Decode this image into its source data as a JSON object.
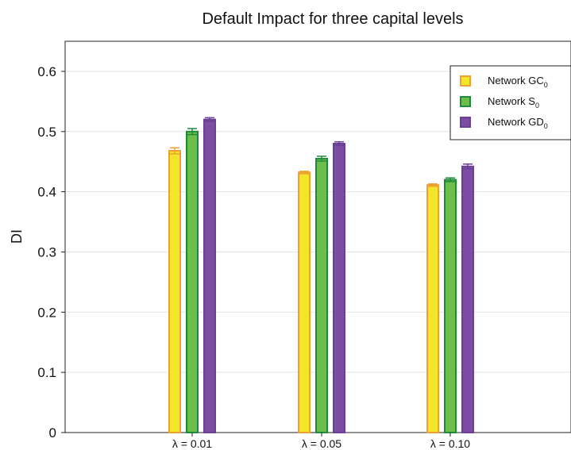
{
  "chart_data": {
    "type": "bar",
    "title": "Default Impact for three capital levels",
    "xlabel": "",
    "ylabel": "DI",
    "ylim": [
      0,
      0.65
    ],
    "yticks": [
      "0",
      "0.1",
      "0.2",
      "0.3",
      "0.4",
      "0.5",
      "0.6"
    ],
    "grid": true,
    "legend_position": "top-right",
    "categories": [
      "λ = 0.01",
      "λ = 0.05",
      "λ = 0.10"
    ],
    "series": [
      {
        "name": "Network GC",
        "name_sub": "0",
        "values": [
          0.468,
          0.432,
          0.411
        ],
        "errors": [
          0.005,
          0.002,
          0.002
        ],
        "fill": "#f2e62a",
        "stroke": "#f0a030"
      },
      {
        "name": "Network S",
        "name_sub": "0",
        "values": [
          0.5,
          0.455,
          0.42
        ],
        "errors": [
          0.005,
          0.004,
          0.003
        ],
        "fill": "#6cbf4a",
        "stroke": "#1f8a3a"
      },
      {
        "name": "Network GD",
        "name_sub": "0",
        "values": [
          0.52,
          0.48,
          0.442
        ],
        "errors": [
          0.003,
          0.003,
          0.004
        ],
        "fill": "#7b4ea3",
        "stroke": "#6a3f95"
      }
    ]
  }
}
